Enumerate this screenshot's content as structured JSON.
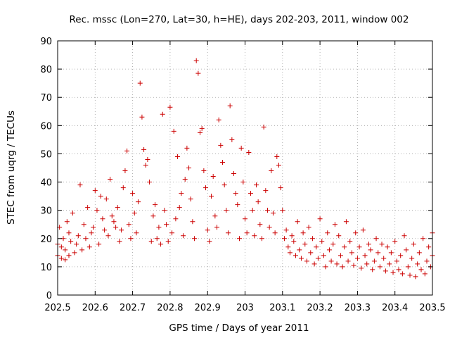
{
  "chart_data": {
    "type": "scatter",
    "title": "Rec. mssc (Lon=270, Lat=30, h=HE), days 202-203, 2011, window 002",
    "xlabel": "GPS time / Days of year 2011",
    "ylabel": "STEC from uqrg / TECUs",
    "xlim": [
      202.5,
      203.5
    ],
    "ylim": [
      0,
      90
    ],
    "x_ticks": [
      202.5,
      202.6,
      202.7,
      202.8,
      202.9,
      203.0,
      203.1,
      203.2,
      203.3,
      203.4,
      203.5
    ],
    "x_tick_labels": [
      "202.5",
      "202.6",
      "202.7",
      "202.8",
      "202.9",
      "203",
      "203.1",
      "203.2",
      "203.3",
      "203.4",
      "203.5"
    ],
    "y_ticks": [
      0,
      10,
      20,
      30,
      40,
      50,
      60,
      70,
      80,
      90
    ],
    "y_tick_labels": [
      "0",
      "10",
      "20",
      "30",
      "40",
      "50",
      "60",
      "70",
      "80",
      "90"
    ],
    "grid": true,
    "marker": "+",
    "marker_color": "#cc0000",
    "series": [
      {
        "name": "STEC",
        "points": [
          [
            202.5,
            14
          ],
          [
            202.5,
            18
          ],
          [
            202.505,
            24
          ],
          [
            202.51,
            13
          ],
          [
            202.51,
            17
          ],
          [
            202.515,
            20
          ],
          [
            202.52,
            12.5
          ],
          [
            202.52,
            16
          ],
          [
            202.525,
            26
          ],
          [
            202.53,
            14
          ],
          [
            202.53,
            22
          ],
          [
            202.535,
            19
          ],
          [
            202.54,
            29
          ],
          [
            202.545,
            15
          ],
          [
            202.55,
            18
          ],
          [
            202.555,
            21
          ],
          [
            202.56,
            39
          ],
          [
            202.565,
            16
          ],
          [
            202.57,
            25
          ],
          [
            202.575,
            20
          ],
          [
            202.58,
            31
          ],
          [
            202.585,
            17
          ],
          [
            202.59,
            22
          ],
          [
            202.595,
            24
          ],
          [
            202.6,
            37
          ],
          [
            202.605,
            30
          ],
          [
            202.61,
            18
          ],
          [
            202.615,
            35
          ],
          [
            202.62,
            27
          ],
          [
            202.625,
            23
          ],
          [
            202.63,
            34
          ],
          [
            202.635,
            21
          ],
          [
            202.64,
            41
          ],
          [
            202.645,
            28
          ],
          [
            202.65,
            26
          ],
          [
            202.655,
            24
          ],
          [
            202.66,
            31
          ],
          [
            202.665,
            19
          ],
          [
            202.67,
            23
          ],
          [
            202.675,
            38
          ],
          [
            202.68,
            44
          ],
          [
            202.685,
            51
          ],
          [
            202.69,
            25
          ],
          [
            202.695,
            20
          ],
          [
            202.7,
            36
          ],
          [
            202.705,
            29
          ],
          [
            202.71,
            22
          ],
          [
            202.715,
            33
          ],
          [
            202.72,
            75
          ],
          [
            202.725,
            63
          ],
          [
            202.73,
            51.5
          ],
          [
            202.735,
            46
          ],
          [
            202.74,
            48
          ],
          [
            202.745,
            40
          ],
          [
            202.75,
            19
          ],
          [
            202.755,
            28
          ],
          [
            202.76,
            32
          ],
          [
            202.765,
            20
          ],
          [
            202.77,
            24
          ],
          [
            202.775,
            18
          ],
          [
            202.78,
            64
          ],
          [
            202.785,
            30
          ],
          [
            202.79,
            25
          ],
          [
            202.795,
            19
          ],
          [
            202.8,
            66.5
          ],
          [
            202.805,
            22
          ],
          [
            202.81,
            58
          ],
          [
            202.815,
            27
          ],
          [
            202.82,
            49
          ],
          [
            202.825,
            31
          ],
          [
            202.83,
            36
          ],
          [
            202.835,
            21
          ],
          [
            202.84,
            41
          ],
          [
            202.845,
            52
          ],
          [
            202.85,
            45
          ],
          [
            202.855,
            34
          ],
          [
            202.86,
            26
          ],
          [
            202.865,
            20
          ],
          [
            202.87,
            83
          ],
          [
            202.875,
            78.5
          ],
          [
            202.88,
            57.5
          ],
          [
            202.885,
            59
          ],
          [
            202.89,
            44
          ],
          [
            202.895,
            38
          ],
          [
            202.9,
            23
          ],
          [
            202.905,
            19
          ],
          [
            202.91,
            35
          ],
          [
            202.915,
            42
          ],
          [
            202.92,
            28
          ],
          [
            202.925,
            24
          ],
          [
            202.93,
            62
          ],
          [
            202.935,
            53
          ],
          [
            202.94,
            47
          ],
          [
            202.945,
            39
          ],
          [
            202.95,
            30
          ],
          [
            202.955,
            22
          ],
          [
            202.96,
            67
          ],
          [
            202.965,
            55
          ],
          [
            202.97,
            43
          ],
          [
            202.975,
            36
          ],
          [
            202.98,
            32
          ],
          [
            202.985,
            20
          ],
          [
            202.99,
            52
          ],
          [
            202.995,
            40
          ],
          [
            203.0,
            27
          ],
          [
            203.005,
            22
          ],
          [
            203.01,
            50.5
          ],
          [
            203.015,
            36
          ],
          [
            203.02,
            30
          ],
          [
            203.025,
            21
          ],
          [
            203.03,
            39
          ],
          [
            203.035,
            33
          ],
          [
            203.04,
            25
          ],
          [
            203.045,
            20
          ],
          [
            203.05,
            59.5
          ],
          [
            203.055,
            37
          ],
          [
            203.06,
            30
          ],
          [
            203.065,
            24
          ],
          [
            203.07,
            44
          ],
          [
            203.075,
            29
          ],
          [
            203.08,
            22
          ],
          [
            203.085,
            49
          ],
          [
            203.09,
            46
          ],
          [
            203.095,
            38
          ],
          [
            203.1,
            30
          ],
          [
            203.105,
            20
          ],
          [
            203.11,
            23
          ],
          [
            203.115,
            17
          ],
          [
            203.12,
            15
          ],
          [
            203.125,
            21
          ],
          [
            203.13,
            19
          ],
          [
            203.135,
            14
          ],
          [
            203.14,
            26
          ],
          [
            203.145,
            16
          ],
          [
            203.15,
            13
          ],
          [
            203.155,
            22
          ],
          [
            203.16,
            18
          ],
          [
            203.165,
            12
          ],
          [
            203.17,
            24
          ],
          [
            203.175,
            15
          ],
          [
            203.18,
            20
          ],
          [
            203.185,
            11
          ],
          [
            203.19,
            17
          ],
          [
            203.195,
            13
          ],
          [
            203.2,
            27
          ],
          [
            203.205,
            19
          ],
          [
            203.21,
            14
          ],
          [
            203.215,
            10
          ],
          [
            203.22,
            22
          ],
          [
            203.225,
            16
          ],
          [
            203.23,
            12
          ],
          [
            203.235,
            18
          ],
          [
            203.24,
            25
          ],
          [
            203.245,
            11
          ],
          [
            203.25,
            21
          ],
          [
            203.255,
            14
          ],
          [
            203.26,
            10
          ],
          [
            203.265,
            17
          ],
          [
            203.27,
            26
          ],
          [
            203.275,
            12
          ],
          [
            203.28,
            19
          ],
          [
            203.285,
            15
          ],
          [
            203.29,
            10.5
          ],
          [
            203.295,
            22
          ],
          [
            203.3,
            13
          ],
          [
            203.305,
            17
          ],
          [
            203.31,
            9.5
          ],
          [
            203.315,
            23
          ],
          [
            203.32,
            14
          ],
          [
            203.325,
            11
          ],
          [
            203.33,
            18
          ],
          [
            203.335,
            16
          ],
          [
            203.34,
            9
          ],
          [
            203.345,
            12
          ],
          [
            203.35,
            20
          ],
          [
            203.355,
            15
          ],
          [
            203.36,
            10
          ],
          [
            203.365,
            18
          ],
          [
            203.37,
            13
          ],
          [
            203.375,
            8.5
          ],
          [
            203.38,
            17
          ],
          [
            203.385,
            11
          ],
          [
            203.39,
            15
          ],
          [
            203.395,
            8
          ],
          [
            203.4,
            19
          ],
          [
            203.405,
            12
          ],
          [
            203.41,
            9
          ],
          [
            203.415,
            14
          ],
          [
            203.42,
            7.5
          ],
          [
            203.425,
            21
          ],
          [
            203.43,
            16
          ],
          [
            203.435,
            10
          ],
          [
            203.44,
            7
          ],
          [
            203.445,
            13
          ],
          [
            203.45,
            18
          ],
          [
            203.455,
            6.5
          ],
          [
            203.46,
            11
          ],
          [
            203.465,
            15
          ],
          [
            203.47,
            9
          ],
          [
            203.475,
            20
          ],
          [
            203.48,
            7.5
          ],
          [
            203.485,
            12
          ],
          [
            203.49,
            17
          ],
          [
            203.495,
            10
          ],
          [
            203.5,
            22
          ],
          [
            203.5,
            14
          ]
        ]
      }
    ]
  }
}
